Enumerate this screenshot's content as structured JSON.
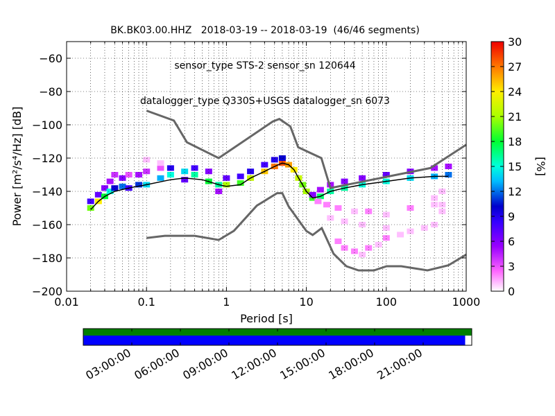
{
  "title_lines": [
    "BK.BK03.00.HHZ   2018-03-19 -- 2018-03-19  (46/46 segments)",
    "sensor_type STS-2 sensor_sn 120644",
    "datalogger_type Q330S+USGS datalogger_sn 6073"
  ],
  "chart_data": {
    "type": "heatmap",
    "xlabel": "Period [s]",
    "ylabel": "Power [m²/s⁴/Hz] [dB]",
    "xscale": "log",
    "xlim": [
      0.01,
      1000
    ],
    "ylim": [
      -200,
      -50
    ],
    "x_ticks": [
      0.01,
      0.1,
      1,
      10,
      100,
      1000
    ],
    "x_tick_labels": [
      "0.01",
      "0.1",
      "1",
      "10",
      "100",
      "1000"
    ],
    "y_ticks": [
      -200,
      -180,
      -160,
      -140,
      -120,
      -100,
      -80,
      -60
    ],
    "y_tick_labels": [
      "−200",
      "−180",
      "−160",
      "−140",
      "−120",
      "−100",
      "−80",
      "−60"
    ],
    "grid": true,
    "colorbar": {
      "label": "[%]",
      "range": [
        0,
        30
      ],
      "ticks": [
        0,
        3,
        6,
        9,
        12,
        15,
        18,
        21,
        24,
        27,
        30
      ],
      "tick_labels": [
        "0",
        "3",
        "6",
        "9",
        "12",
        "15",
        "18",
        "21",
        "24",
        "27",
        "30"
      ]
    },
    "noise_models": [
      {
        "model": "high",
        "points": [
          [
            0.1,
            -91.5
          ],
          [
            0.22,
            -97.4
          ],
          [
            0.32,
            -110.5
          ],
          [
            0.8,
            -120
          ],
          [
            3.8,
            -98
          ],
          [
            4.6,
            -96.5
          ],
          [
            6.3,
            -101
          ],
          [
            7.9,
            -113.5
          ],
          [
            15.4,
            -120
          ],
          [
            20,
            -138
          ],
          [
            354.8,
            -126
          ],
          [
            1000,
            -112
          ]
        ]
      },
      {
        "model": "low",
        "points": [
          [
            0.1,
            -168
          ],
          [
            0.17,
            -166.7
          ],
          [
            0.4,
            -166.7
          ],
          [
            0.8,
            -169.2
          ],
          [
            1.24,
            -163.7
          ],
          [
            2.4,
            -148.6
          ],
          [
            4.3,
            -141.1
          ],
          [
            5,
            -141.1
          ],
          [
            6,
            -149
          ],
          [
            10,
            -163.8
          ],
          [
            12,
            -166.2
          ],
          [
            15.6,
            -162.1
          ],
          [
            21.9,
            -177.5
          ],
          [
            31.6,
            -185
          ],
          [
            45,
            -187.5
          ],
          [
            70,
            -187.5
          ],
          [
            101,
            -185
          ],
          [
            154,
            -185
          ],
          [
            328,
            -187.5
          ],
          [
            600,
            -184.4
          ],
          [
            1000,
            -178
          ]
        ]
      }
    ],
    "mean_psd": {
      "points": [
        [
          0.02,
          -151
        ],
        [
          0.025,
          -146
        ],
        [
          0.03,
          -143
        ],
        [
          0.04,
          -140
        ],
        [
          0.06,
          -138
        ],
        [
          0.1,
          -136
        ],
        [
          0.2,
          -133
        ],
        [
          0.3,
          -132
        ],
        [
          0.5,
          -133
        ],
        [
          0.8,
          -136
        ],
        [
          1,
          -137
        ],
        [
          1.5,
          -136
        ],
        [
          2,
          -132
        ],
        [
          3,
          -128
        ],
        [
          4,
          -125
        ],
        [
          5,
          -123
        ],
        [
          6,
          -124
        ],
        [
          7,
          -127
        ],
        [
          8,
          -132
        ],
        [
          10,
          -140
        ],
        [
          12,
          -144
        ],
        [
          15,
          -143
        ],
        [
          20,
          -140
        ],
        [
          30,
          -138
        ],
        [
          50,
          -136
        ],
        [
          100,
          -134
        ],
        [
          200,
          -132
        ],
        [
          400,
          -131
        ],
        [
          600,
          -131
        ]
      ]
    },
    "psd_cells": [
      {
        "period": 0.02,
        "power": -150,
        "percent": 20
      },
      {
        "period": 0.02,
        "power": -146,
        "percent": 8
      },
      {
        "period": 0.025,
        "power": -146,
        "percent": 24
      },
      {
        "period": 0.025,
        "power": -142,
        "percent": 7
      },
      {
        "period": 0.03,
        "power": -143,
        "percent": 18
      },
      {
        "period": 0.03,
        "power": -138,
        "percent": 6
      },
      {
        "period": 0.035,
        "power": -140,
        "percent": 15
      },
      {
        "period": 0.035,
        "power": -134,
        "percent": 5
      },
      {
        "period": 0.04,
        "power": -138,
        "percent": 10
      },
      {
        "period": 0.04,
        "power": -130,
        "percent": 4
      },
      {
        "period": 0.05,
        "power": -137,
        "percent": 12
      },
      {
        "period": 0.05,
        "power": -132,
        "percent": 6
      },
      {
        "period": 0.06,
        "power": -138,
        "percent": 8
      },
      {
        "period": 0.06,
        "power": -130,
        "percent": 3
      },
      {
        "period": 0.08,
        "power": -136,
        "percent": 11
      },
      {
        "period": 0.08,
        "power": -130,
        "percent": 5
      },
      {
        "period": 0.1,
        "power": -136,
        "percent": 14
      },
      {
        "period": 0.1,
        "power": -128,
        "percent": 4
      },
      {
        "period": 0.15,
        "power": -132,
        "percent": 13
      },
      {
        "period": 0.15,
        "power": -126,
        "percent": 3
      },
      {
        "period": 0.2,
        "power": -130,
        "percent": 15
      },
      {
        "period": 0.2,
        "power": -126,
        "percent": 9
      },
      {
        "period": 0.3,
        "power": -128,
        "percent": 14
      },
      {
        "period": 0.3,
        "power": -133,
        "percent": 7
      },
      {
        "period": 0.4,
        "power": -130,
        "percent": 16
      },
      {
        "period": 0.4,
        "power": -126,
        "percent": 8
      },
      {
        "period": 0.6,
        "power": -134,
        "percent": 18
      },
      {
        "period": 0.6,
        "power": -128,
        "percent": 6
      },
      {
        "period": 0.8,
        "power": -136,
        "percent": 16
      },
      {
        "period": 0.8,
        "power": -140,
        "percent": 5
      },
      {
        "period": 1,
        "power": -136,
        "percent": 21
      },
      {
        "period": 1,
        "power": -132,
        "percent": 7
      },
      {
        "period": 1.5,
        "power": -135,
        "percent": 19
      },
      {
        "period": 1.5,
        "power": -131,
        "percent": 8
      },
      {
        "period": 2,
        "power": -132,
        "percent": 22
      },
      {
        "period": 2,
        "power": -128,
        "percent": 9
      },
      {
        "period": 3,
        "power": -128,
        "percent": 25
      },
      {
        "period": 3,
        "power": -124,
        "percent": 8
      },
      {
        "period": 4,
        "power": -125,
        "percent": 27
      },
      {
        "period": 4,
        "power": -121,
        "percent": 9
      },
      {
        "period": 5,
        "power": -123,
        "percent": 28
      },
      {
        "period": 5,
        "power": -120,
        "percent": 10
      },
      {
        "period": 6,
        "power": -124,
        "percent": 26
      },
      {
        "period": 7,
        "power": -127,
        "percent": 24
      },
      {
        "period": 8,
        "power": -132,
        "percent": 22
      },
      {
        "period": 9,
        "power": -136,
        "percent": 20
      },
      {
        "period": 10,
        "power": -140,
        "percent": 21
      },
      {
        "period": 12,
        "power": -144,
        "percent": 19
      },
      {
        "period": 12,
        "power": -142,
        "percent": 6
      },
      {
        "period": 15,
        "power": -143,
        "percent": 17
      },
      {
        "period": 15,
        "power": -139,
        "percent": 5
      },
      {
        "period": 20,
        "power": -140,
        "percent": 16
      },
      {
        "period": 20,
        "power": -136,
        "percent": 5
      },
      {
        "period": 30,
        "power": -138,
        "percent": 16
      },
      {
        "period": 30,
        "power": -134,
        "percent": 6
      },
      {
        "period": 50,
        "power": -136,
        "percent": 15
      },
      {
        "period": 50,
        "power": -132,
        "percent": 6
      },
      {
        "period": 100,
        "power": -134,
        "percent": 15
      },
      {
        "period": 100,
        "power": -130,
        "percent": 7
      },
      {
        "period": 200,
        "power": -132,
        "percent": 14
      },
      {
        "period": 200,
        "power": -128,
        "percent": 6
      },
      {
        "period": 400,
        "power": -131,
        "percent": 13
      },
      {
        "period": 400,
        "power": -126,
        "percent": 5
      },
      {
        "period": 600,
        "power": -130,
        "percent": 12
      },
      {
        "period": 600,
        "power": -125,
        "percent": 5
      },
      {
        "period": 0.1,
        "power": -121,
        "percent": 1
      },
      {
        "period": 0.15,
        "power": -123,
        "percent": 1
      },
      {
        "period": 14,
        "power": -146,
        "percent": 2
      },
      {
        "period": 18,
        "power": -148,
        "percent": 2
      },
      {
        "period": 25,
        "power": -150,
        "percent": 2
      },
      {
        "period": 40,
        "power": -152,
        "percent": 1
      },
      {
        "period": 60,
        "power": -152,
        "percent": 2
      },
      {
        "period": 100,
        "power": -154,
        "percent": 1
      },
      {
        "period": 200,
        "power": -150,
        "percent": 2
      },
      {
        "period": 400,
        "power": -148,
        "percent": 1
      },
      {
        "period": 20,
        "power": -156,
        "percent": 1
      },
      {
        "period": 30,
        "power": -158,
        "percent": 1
      },
      {
        "period": 50,
        "power": -160,
        "percent": 1
      },
      {
        "period": 100,
        "power": -162,
        "percent": 1
      },
      {
        "period": 200,
        "power": -164,
        "percent": 1
      },
      {
        "period": 400,
        "power": -160,
        "percent": 1
      },
      {
        "period": 25,
        "power": -170,
        "percent": 2
      },
      {
        "period": 30,
        "power": -174,
        "percent": 2
      },
      {
        "period": 40,
        "power": -176,
        "percent": 2
      },
      {
        "period": 60,
        "power": -174,
        "percent": 2
      },
      {
        "period": 80,
        "power": -172,
        "percent": 1
      },
      {
        "period": 100,
        "power": -168,
        "percent": 2
      },
      {
        "period": 150,
        "power": -166,
        "percent": 1
      },
      {
        "period": 50,
        "power": -178,
        "percent": 1
      },
      {
        "period": 400,
        "power": -144,
        "percent": 1
      },
      {
        "period": 500,
        "power": -152,
        "percent": 1
      },
      {
        "period": 500,
        "power": -140,
        "percent": 1
      },
      {
        "period": 300,
        "power": -162,
        "percent": 1
      },
      {
        "period": 500,
        "power": -148,
        "percent": 1
      }
    ]
  },
  "timeline": {
    "data_coverage_fraction": 0.983,
    "tick_labels": [
      "03:00:00",
      "06:00:00",
      "09:00:00",
      "12:00:00",
      "15:00:00",
      "18:00:00",
      "21:00:00"
    ],
    "tick_hours": [
      3,
      6,
      9,
      12,
      15,
      18,
      21
    ],
    "span_hours": 24,
    "colors": {
      "segments": "#007f00",
      "coverage": "#0000ff"
    }
  }
}
